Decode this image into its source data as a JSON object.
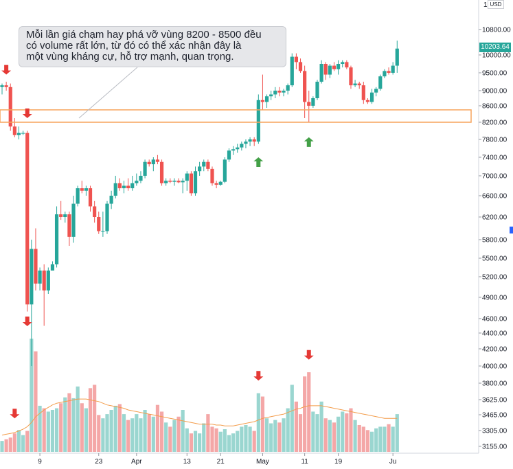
{
  "currency": "USD",
  "current_price": "10203.64",
  "callout": {
    "line1": "Mỗi lần giá chạm hay phá vỡ vùng 8200 - 8500 đều",
    "line2": "có volume rất lớn, từ đó có thể xác nhận đây là",
    "line3": "một vùng kháng cự, hỗ trợ mạnh, quan trọng."
  },
  "colors": {
    "up": "#26a69a",
    "down": "#ef5350",
    "volume_up": "#9ad6d0",
    "volume_down": "#f4a7a7",
    "zone": "#f7a35c",
    "volume_ma": "#f39c4a",
    "arrow_red": "#e53935",
    "arrow_green": "#43a047",
    "price_tag": "#26a69a"
  },
  "chart_data": {
    "type": "candlestick",
    "title": "",
    "price_axis": {
      "ticks": [
        10800,
        10000,
        9500,
        9000,
        8600,
        8200,
        7800,
        7400,
        7000,
        6600,
        6200,
        5800,
        5500,
        5200,
        4900,
        4600,
        4400,
        4200,
        4000,
        3800,
        3625,
        3465,
        3305,
        3155
      ],
      "tick_labels": [
        "10800.00",
        "10000.00",
        "9500.00",
        "9000.00",
        "8600.00",
        "8200.00",
        "7800.00",
        "7400.00",
        "7000.00",
        "6600.00",
        "6200.00",
        "5800.00",
        "5500.00",
        "5200.00",
        "4900.00",
        "4600.00",
        "4400.00",
        "4200.00",
        "4000.00",
        "3800.00",
        "3625.00",
        "3465.00",
        "3305.00",
        "3155.00"
      ],
      "top_label": "1"
    },
    "x_axis": {
      "tick_labels": [
        "9",
        "23",
        "Apr",
        "13",
        "21",
        "May",
        "11",
        "19",
        "Ju"
      ],
      "tick_days": [
        9,
        23,
        32,
        44,
        52,
        62,
        72,
        80,
        93
      ]
    },
    "support_resistance_zone": {
      "low": 8200,
      "high": 8500
    },
    "candles": [
      {
        "day": 0,
        "o": 9100,
        "h": 9200,
        "l": 8900,
        "c": 9150
      },
      {
        "day": 1,
        "o": 9150,
        "h": 9250,
        "l": 9000,
        "c": 9100
      },
      {
        "day": 2,
        "o": 9100,
        "h": 9200,
        "l": 8000,
        "c": 8100
      },
      {
        "day": 3,
        "o": 8100,
        "h": 8300,
        "l": 7850,
        "c": 7900
      },
      {
        "day": 4,
        "o": 7900,
        "h": 8100,
        "l": 7800,
        "c": 7950
      },
      {
        "day": 5,
        "o": 7950,
        "h": 8000,
        "l": 7900,
        "c": 7950
      },
      {
        "day": 6,
        "o": 7950,
        "h": 8000,
        "l": 4700,
        "c": 4800
      },
      {
        "day": 7,
        "o": 4800,
        "h": 5800,
        "l": 4000,
        "c": 5650
      },
      {
        "day": 8,
        "o": 5650,
        "h": 6000,
        "l": 5000,
        "c": 5100
      },
      {
        "day": 9,
        "o": 5100,
        "h": 5350,
        "l": 5000,
        "c": 5300
      },
      {
        "day": 10,
        "o": 5300,
        "h": 5400,
        "l": 4500,
        "c": 5000
      },
      {
        "day": 11,
        "o": 5000,
        "h": 5350,
        "l": 4950,
        "c": 5300
      },
      {
        "day": 12,
        "o": 5300,
        "h": 5450,
        "l": 5300,
        "c": 5400
      },
      {
        "day": 13,
        "o": 5400,
        "h": 6400,
        "l": 5350,
        "c": 6250
      },
      {
        "day": 14,
        "o": 6250,
        "h": 6500,
        "l": 6150,
        "c": 6200
      },
      {
        "day": 15,
        "o": 6200,
        "h": 6300,
        "l": 6100,
        "c": 6250
      },
      {
        "day": 16,
        "o": 6250,
        "h": 6300,
        "l": 5700,
        "c": 5850
      },
      {
        "day": 17,
        "o": 5850,
        "h": 6600,
        "l": 5750,
        "c": 6450
      },
      {
        "day": 18,
        "o": 6450,
        "h": 6800,
        "l": 6400,
        "c": 6750
      },
      {
        "day": 19,
        "o": 6750,
        "h": 6900,
        "l": 6650,
        "c": 6700
      },
      {
        "day": 20,
        "o": 6700,
        "h": 6800,
        "l": 6600,
        "c": 6750
      },
      {
        "day": 21,
        "o": 6750,
        "h": 6800,
        "l": 6300,
        "c": 6400
      },
      {
        "day": 22,
        "o": 6400,
        "h": 6500,
        "l": 6100,
        "c": 6200
      },
      {
        "day": 23,
        "o": 6200,
        "h": 6300,
        "l": 5900,
        "c": 5950
      },
      {
        "day": 24,
        "o": 5950,
        "h": 6300,
        "l": 5850,
        "c": 5950
      },
      {
        "day": 25,
        "o": 5950,
        "h": 6500,
        "l": 5900,
        "c": 6450
      },
      {
        "day": 26,
        "o": 6450,
        "h": 6700,
        "l": 6350,
        "c": 6600
      },
      {
        "day": 27,
        "o": 6600,
        "h": 7000,
        "l": 6550,
        "c": 6850
      },
      {
        "day": 28,
        "o": 6850,
        "h": 6950,
        "l": 6700,
        "c": 6750
      },
      {
        "day": 29,
        "o": 6750,
        "h": 6900,
        "l": 6650,
        "c": 6800
      },
      {
        "day": 30,
        "o": 6800,
        "h": 6950,
        "l": 6700,
        "c": 6750
      },
      {
        "day": 31,
        "o": 6750,
        "h": 7000,
        "l": 6700,
        "c": 6850
      },
      {
        "day": 32,
        "o": 6850,
        "h": 7050,
        "l": 6800,
        "c": 6900
      },
      {
        "day": 33,
        "o": 6900,
        "h": 7100,
        "l": 6850,
        "c": 7000
      },
      {
        "day": 34,
        "o": 7000,
        "h": 7350,
        "l": 6950,
        "c": 7300
      },
      {
        "day": 35,
        "o": 7300,
        "h": 7350,
        "l": 7200,
        "c": 7250
      },
      {
        "day": 36,
        "o": 7250,
        "h": 7400,
        "l": 7100,
        "c": 7350
      },
      {
        "day": 37,
        "o": 7350,
        "h": 7450,
        "l": 7250,
        "c": 7300
      },
      {
        "day": 38,
        "o": 7300,
        "h": 7350,
        "l": 6800,
        "c": 6850
      },
      {
        "day": 39,
        "o": 6850,
        "h": 6950,
        "l": 6800,
        "c": 6900
      },
      {
        "day": 40,
        "o": 6900,
        "h": 6950,
        "l": 6850,
        "c": 6880
      },
      {
        "day": 41,
        "o": 6880,
        "h": 6950,
        "l": 6800,
        "c": 6900
      },
      {
        "day": 42,
        "o": 6900,
        "h": 6950,
        "l": 6850,
        "c": 6870
      },
      {
        "day": 43,
        "o": 6870,
        "h": 6950,
        "l": 6650,
        "c": 6900
      },
      {
        "day": 44,
        "o": 6900,
        "h": 7100,
        "l": 6700,
        "c": 7050
      },
      {
        "day": 45,
        "o": 7050,
        "h": 7100,
        "l": 6600,
        "c": 6650
      },
      {
        "day": 46,
        "o": 6650,
        "h": 7200,
        "l": 6600,
        "c": 7100
      },
      {
        "day": 47,
        "o": 7100,
        "h": 7300,
        "l": 7000,
        "c": 7200
      },
      {
        "day": 48,
        "o": 7200,
        "h": 7350,
        "l": 7100,
        "c": 7300
      },
      {
        "day": 49,
        "o": 7300,
        "h": 7350,
        "l": 7100,
        "c": 7150
      },
      {
        "day": 50,
        "o": 7150,
        "h": 7200,
        "l": 6800,
        "c": 6850
      },
      {
        "day": 51,
        "o": 6850,
        "h": 6900,
        "l": 6750,
        "c": 6820
      },
      {
        "day": 52,
        "o": 6820,
        "h": 6900,
        "l": 6800,
        "c": 6880
      },
      {
        "day": 53,
        "o": 6880,
        "h": 7400,
        "l": 6850,
        "c": 7350
      },
      {
        "day": 54,
        "o": 7350,
        "h": 7600,
        "l": 7300,
        "c": 7550
      },
      {
        "day": 55,
        "o": 7550,
        "h": 7650,
        "l": 7450,
        "c": 7580
      },
      {
        "day": 56,
        "o": 7580,
        "h": 7700,
        "l": 7500,
        "c": 7620
      },
      {
        "day": 57,
        "o": 7620,
        "h": 7750,
        "l": 7550,
        "c": 7700
      },
      {
        "day": 58,
        "o": 7700,
        "h": 7800,
        "l": 7600,
        "c": 7750
      },
      {
        "day": 59,
        "o": 7750,
        "h": 7850,
        "l": 7650,
        "c": 7800
      },
      {
        "day": 60,
        "o": 7800,
        "h": 7850,
        "l": 7650,
        "c": 7750
      },
      {
        "day": 61,
        "o": 7750,
        "h": 8900,
        "l": 7700,
        "c": 8750
      },
      {
        "day": 62,
        "o": 8750,
        "h": 9450,
        "l": 8500,
        "c": 8700
      },
      {
        "day": 63,
        "o": 8700,
        "h": 8900,
        "l": 8550,
        "c": 8850
      },
      {
        "day": 64,
        "o": 8850,
        "h": 9000,
        "l": 8750,
        "c": 8900
      },
      {
        "day": 65,
        "o": 8900,
        "h": 9100,
        "l": 8800,
        "c": 9000
      },
      {
        "day": 66,
        "o": 9000,
        "h": 9100,
        "l": 8850,
        "c": 8950
      },
      {
        "day": 67,
        "o": 8950,
        "h": 9050,
        "l": 8850,
        "c": 9000
      },
      {
        "day": 68,
        "o": 9000,
        "h": 9200,
        "l": 8900,
        "c": 9150
      },
      {
        "day": 69,
        "o": 9150,
        "h": 10050,
        "l": 9100,
        "c": 9950
      },
      {
        "day": 70,
        "o": 9950,
        "h": 10050,
        "l": 9600,
        "c": 9800
      },
      {
        "day": 71,
        "o": 9800,
        "h": 9900,
        "l": 9500,
        "c": 9550
      },
      {
        "day": 72,
        "o": 9550,
        "h": 9700,
        "l": 8300,
        "c": 8700
      },
      {
        "day": 73,
        "o": 8700,
        "h": 9000,
        "l": 8200,
        "c": 8600
      },
      {
        "day": 74,
        "o": 8600,
        "h": 8850,
        "l": 8550,
        "c": 8800
      },
      {
        "day": 75,
        "o": 8800,
        "h": 9300,
        "l": 8750,
        "c": 9250
      },
      {
        "day": 76,
        "o": 9250,
        "h": 9850,
        "l": 9200,
        "c": 9750
      },
      {
        "day": 77,
        "o": 9750,
        "h": 9800,
        "l": 9300,
        "c": 9450
      },
      {
        "day": 78,
        "o": 9450,
        "h": 9750,
        "l": 9350,
        "c": 9700
      },
      {
        "day": 79,
        "o": 9700,
        "h": 9800,
        "l": 9550,
        "c": 9600
      },
      {
        "day": 80,
        "o": 9600,
        "h": 9850,
        "l": 9450,
        "c": 9750
      },
      {
        "day": 81,
        "o": 9750,
        "h": 9850,
        "l": 9650,
        "c": 9800
      },
      {
        "day": 82,
        "o": 9800,
        "h": 9850,
        "l": 9600,
        "c": 9650
      },
      {
        "day": 83,
        "o": 9650,
        "h": 9700,
        "l": 9050,
        "c": 9150
      },
      {
        "day": 84,
        "o": 9150,
        "h": 9300,
        "l": 9100,
        "c": 9200
      },
      {
        "day": 85,
        "o": 9200,
        "h": 9250,
        "l": 9050,
        "c": 9150
      },
      {
        "day": 86,
        "o": 9150,
        "h": 9250,
        "l": 8650,
        "c": 8750
      },
      {
        "day": 87,
        "o": 8750,
        "h": 8800,
        "l": 8650,
        "c": 8700
      },
      {
        "day": 88,
        "o": 8700,
        "h": 9050,
        "l": 8650,
        "c": 8950
      },
      {
        "day": 89,
        "o": 8950,
        "h": 9100,
        "l": 8850,
        "c": 9050
      },
      {
        "day": 90,
        "o": 9050,
        "h": 9450,
        "l": 9000,
        "c": 9400
      },
      {
        "day": 91,
        "o": 9400,
        "h": 9600,
        "l": 9350,
        "c": 9550
      },
      {
        "day": 92,
        "o": 9550,
        "h": 9650,
        "l": 9450,
        "c": 9500
      },
      {
        "day": 93,
        "o": 9500,
        "h": 9800,
        "l": 9450,
        "c": 9700
      },
      {
        "day": 94,
        "o": 9700,
        "h": 10450,
        "l": 9500,
        "c": 10200
      }
    ],
    "volume": {
      "values": [
        13,
        15,
        17,
        22,
        26,
        20,
        25,
        135,
        120,
        55,
        52,
        48,
        50,
        52,
        58,
        65,
        70,
        64,
        78,
        58,
        52,
        76,
        80,
        44,
        40,
        45,
        50,
        55,
        57,
        45,
        38,
        40,
        45,
        40,
        50,
        45,
        42,
        56,
        48,
        35,
        30,
        38,
        42,
        50,
        28,
        22,
        25,
        22,
        34,
        45,
        30,
        28,
        24,
        27,
        20,
        22,
        25,
        30,
        32,
        30,
        25,
        70,
        66,
        40,
        34,
        38,
        35,
        40,
        52,
        80,
        60,
        45,
        90,
        95,
        48,
        45,
        60,
        40,
        38,
        35,
        42,
        48,
        46,
        52,
        38,
        32,
        30,
        26,
        24,
        28,
        30,
        30,
        33,
        30,
        45
      ],
      "moving_average": [
        20,
        21,
        22,
        23,
        25,
        27,
        30,
        35,
        42,
        46,
        50,
        53,
        56,
        58,
        59,
        60,
        61,
        62,
        63,
        63,
        63,
        62,
        61,
        60,
        58,
        56,
        55,
        54,
        53,
        52,
        50,
        49,
        48,
        47,
        46,
        45,
        44,
        43,
        42,
        41,
        40,
        39,
        38,
        37,
        36,
        35,
        34,
        33,
        33,
        33,
        33,
        32,
        32,
        31,
        31,
        31,
        32,
        33,
        34,
        35,
        36,
        38,
        40,
        41,
        42,
        43,
        44,
        45,
        47,
        49,
        51,
        52,
        54,
        55,
        55,
        55,
        55,
        54,
        53,
        52,
        51,
        50,
        49,
        48,
        47,
        46,
        45,
        44,
        43,
        42,
        41,
        40,
        40,
        40,
        40
      ]
    },
    "markers": [
      {
        "kind": "down-arrow",
        "day": 1,
        "pane": "price",
        "value": 9450
      },
      {
        "kind": "down-arrow",
        "day": 6,
        "pane": "price",
        "value": 8300
      },
      {
        "kind": "down-arrow",
        "day": 6,
        "pane": "volume",
        "value": 150
      },
      {
        "kind": "down-arrow",
        "day": 3,
        "pane": "volume",
        "value": 40
      },
      {
        "kind": "down-arrow",
        "day": 61,
        "pane": "volume",
        "value": 85
      },
      {
        "kind": "down-arrow",
        "day": 73,
        "pane": "volume",
        "value": 110
      },
      {
        "kind": "up-arrow",
        "day": 61,
        "pane": "price",
        "value": 7400
      },
      {
        "kind": "up-arrow",
        "day": 73,
        "pane": "price",
        "value": 7850
      }
    ]
  }
}
